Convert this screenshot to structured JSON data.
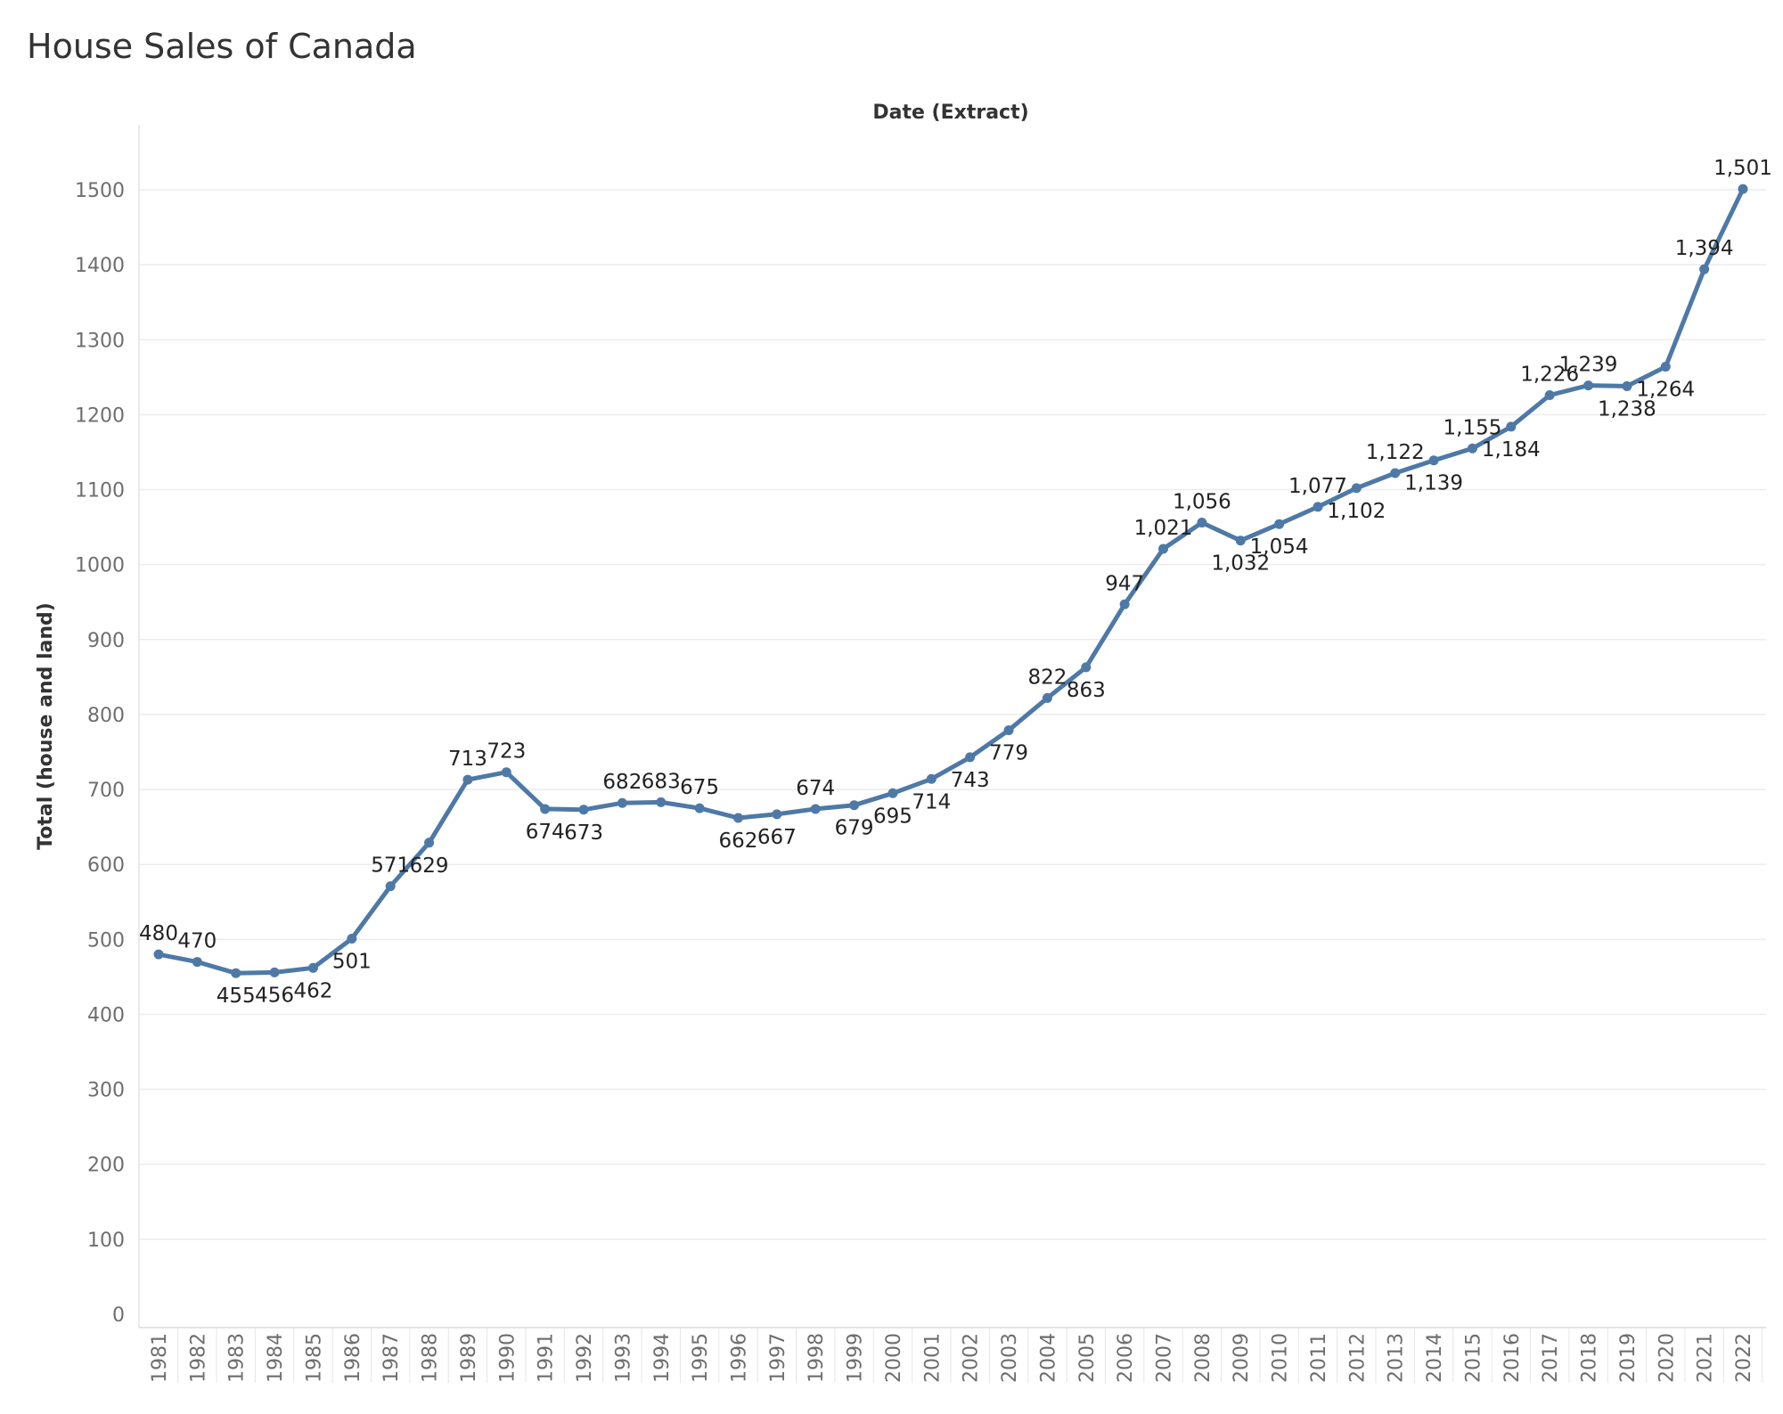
{
  "title": "House Sales of Canada",
  "chart_data": {
    "type": "line",
    "title": "House Sales of Canada",
    "column_header": "Date (Extract)",
    "ylabel": "Total (house and land)",
    "xlabel": "",
    "ylim": [
      0,
      1500
    ],
    "yticks": [
      0,
      100,
      200,
      300,
      400,
      500,
      600,
      700,
      800,
      900,
      1000,
      1100,
      1200,
      1300,
      1400,
      1500
    ],
    "grid": "horizontal",
    "line_color": "#4e79a7",
    "x": [
      "1981",
      "1982",
      "1983",
      "1984",
      "1985",
      "1986",
      "1987",
      "1988",
      "1989",
      "1990",
      "1991",
      "1992",
      "1993",
      "1994",
      "1995",
      "1996",
      "1997",
      "1998",
      "1999",
      "2000",
      "2001",
      "2002",
      "2003",
      "2004",
      "2005",
      "2006",
      "2007",
      "2008",
      "2009",
      "2010",
      "2011",
      "2012",
      "2013",
      "2014",
      "2015",
      "2016",
      "2017",
      "2018",
      "2019",
      "2020",
      "2021",
      "2022"
    ],
    "values": [
      480,
      470,
      455,
      456,
      462,
      501,
      571,
      629,
      713,
      723,
      674,
      673,
      682,
      683,
      675,
      662,
      667,
      674,
      679,
      695,
      714,
      743,
      779,
      822,
      863,
      947,
      1021,
      1056,
      1032,
      1054,
      1077,
      1102,
      1122,
      1139,
      1155,
      1184,
      1226,
      1239,
      1238,
      1264,
      1394,
      1501
    ],
    "labels": [
      "480",
      "470",
      "455",
      "456",
      "462",
      "501",
      "571",
      "629",
      "713",
      "723",
      "674",
      "673",
      "682",
      "683",
      "675",
      "662",
      "667",
      "674",
      "679",
      "695",
      "714",
      "743",
      "779",
      "822",
      "863",
      "947",
      "1,021",
      "1,056",
      "1,032",
      "1,054",
      "1,077",
      "1,102",
      "1,122",
      "1,139",
      "1,155",
      "1,184",
      "1,226",
      "1,239",
      "1,238",
      "1,264",
      "1,394",
      "1,501"
    ],
    "label_position": [
      "above",
      "above",
      "below",
      "below",
      "below",
      "below",
      "above",
      "below",
      "above",
      "above",
      "below",
      "below",
      "above",
      "above",
      "above",
      "below",
      "below",
      "above",
      "below",
      "below",
      "below",
      "below",
      "below",
      "above",
      "below",
      "above",
      "above",
      "above",
      "below",
      "below",
      "above",
      "below",
      "above",
      "below",
      "above",
      "below",
      "above",
      "above",
      "below",
      "below",
      "above",
      "above"
    ]
  }
}
